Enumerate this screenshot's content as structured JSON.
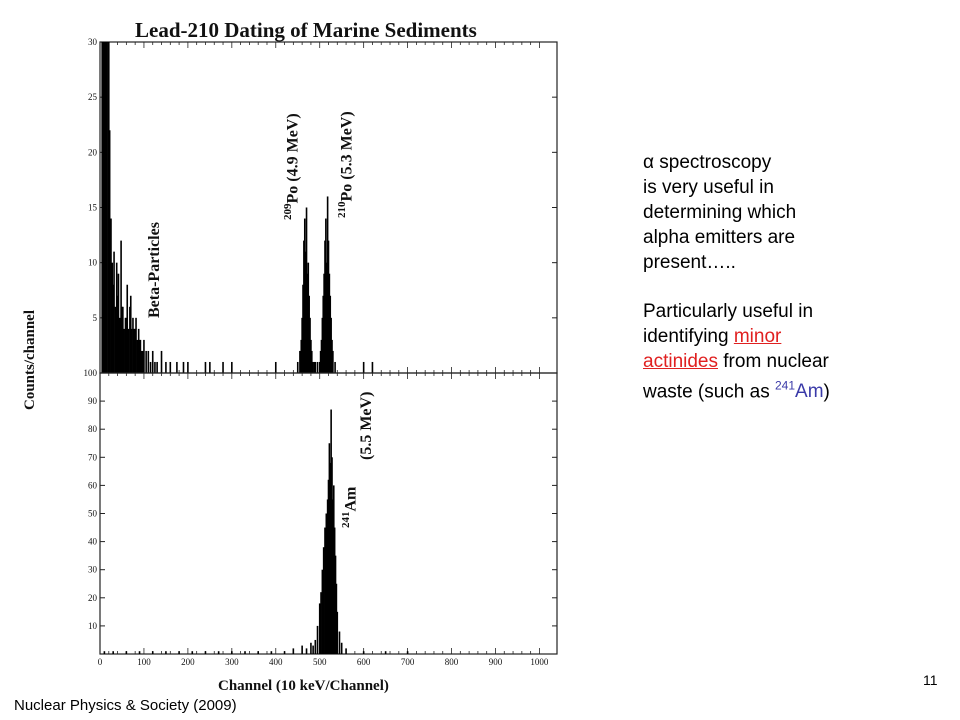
{
  "chart_data": {
    "title": "Lead-210 Dating of Marine Sediments",
    "xlabel": "Channel (10 keV/Channel)",
    "ylabel": "Counts/channel",
    "grid": false,
    "panels": [
      {
        "name": "upper",
        "type": "bar",
        "xlim": [
          0,
          1040
        ],
        "ylim": [
          0,
          30
        ],
        "yticks": [
          5,
          10,
          15,
          20,
          25,
          30
        ],
        "annotations": [
          {
            "text": "Beta-Particles",
            "x": 115
          },
          {
            "sup": "209",
            "text": "Po (4.9 MeV)",
            "x": 475
          },
          {
            "sup": "210",
            "text": "Po (5.3 MeV)",
            "x": 520
          }
        ],
        "series": [
          {
            "x": [
              5,
              8,
              10,
              12,
              15,
              18,
              20,
              22,
              25,
              28,
              30,
              32,
              35,
              38,
              40,
              42,
              45,
              48,
              50,
              52,
              55,
              58,
              60,
              62,
              65,
              68,
              70,
              72,
              75,
              78,
              80,
              82,
              85,
              88,
              90,
              92,
              95,
              98,
              100,
              105,
              110,
              115,
              120,
              125,
              130,
              140,
              150,
              160,
              175,
              190,
              200,
              240,
              250,
              280,
              300,
              400,
              450,
              455,
              458,
              460,
              462,
              464,
              466,
              468,
              470,
              472,
              474,
              476,
              478,
              480,
              482,
              485,
              488,
              490,
              495,
              500,
              502,
              504,
              506,
              508,
              510,
              512,
              514,
              516,
              518,
              520,
              522,
              524,
              526,
              528,
              530,
              535,
              600,
              620
            ],
            "y": [
              30,
              30,
              30,
              30,
              30,
              30,
              30,
              22,
              14,
              10,
              8,
              11,
              6,
              10,
              7,
              9,
              5,
              12,
              6,
              6,
              4,
              5,
              5,
              8,
              4,
              6,
              7,
              4,
              5,
              4,
              4,
              5,
              3,
              4,
              3,
              3,
              2,
              2,
              3,
              2,
              2,
              1,
              2,
              1,
              1,
              2,
              1,
              1,
              1,
              1,
              1,
              1,
              1,
              1,
              1,
              1,
              1,
              2,
              3,
              5,
              8,
              12,
              14,
              11,
              15,
              9,
              10,
              7,
              5,
              3,
              2,
              1,
              1,
              1,
              1,
              1,
              2,
              3,
              5,
              7,
              9,
              12,
              14,
              10,
              16,
              12,
              9,
              7,
              5,
              3,
              2,
              1,
              1,
              1
            ]
          }
        ]
      },
      {
        "name": "lower",
        "type": "bar",
        "xlim": [
          0,
          1040
        ],
        "ylim": [
          0,
          100
        ],
        "xticks": [
          0,
          100,
          200,
          300,
          400,
          500,
          600,
          700,
          800,
          900,
          1000
        ],
        "yticks": [
          10,
          20,
          30,
          40,
          50,
          60,
          70,
          80,
          90,
          100
        ],
        "annotations": [
          {
            "sup": "241",
            "text": "Am",
            "x": 545
          },
          {
            "text": "(5.5 MeV)",
            "x": 580
          }
        ],
        "series": [
          {
            "x": [
              10,
              30,
              60,
              90,
              120,
              150,
              180,
              210,
              240,
              270,
              300,
              330,
              360,
              390,
              420,
              440,
              460,
              470,
              480,
              485,
              490,
              495,
              500,
              503,
              506,
              509,
              512,
              515,
              518,
              520,
              522,
              524,
              526,
              528,
              530,
              532,
              534,
              536,
              538,
              540,
              545,
              550,
              560,
              600,
              650,
              700
            ],
            "y": [
              1,
              1,
              1,
              1,
              1,
              1,
              1,
              1,
              1,
              1,
              1,
              1,
              1,
              1,
              1,
              2,
              3,
              2,
              4,
              3,
              5,
              10,
              18,
              22,
              30,
              38,
              45,
              50,
              55,
              62,
              75,
              68,
              87,
              70,
              55,
              60,
              45,
              35,
              25,
              15,
              8,
              4,
              2,
              1,
              1,
              1
            ]
          }
        ]
      }
    ]
  },
  "text": {
    "alpha_symbol": "α",
    "line1": " spectroscopy",
    "line2": "is very useful in",
    "line3": "determining which",
    "line4": "alpha emitters are",
    "line5": "present…..",
    "p2_a": "Particularly useful in",
    "p2_b": "identifying ",
    "p2_minor": "minor",
    "p2_actinides": "actinides",
    "p2_c": " from nuclear",
    "p2_d": "waste (such as ",
    "p2_sup": "241",
    "p2_am": "Am",
    "p2_close": ")"
  },
  "footer": {
    "source": "Nuclear Physics & Society (2009)",
    "page_number": "11"
  }
}
